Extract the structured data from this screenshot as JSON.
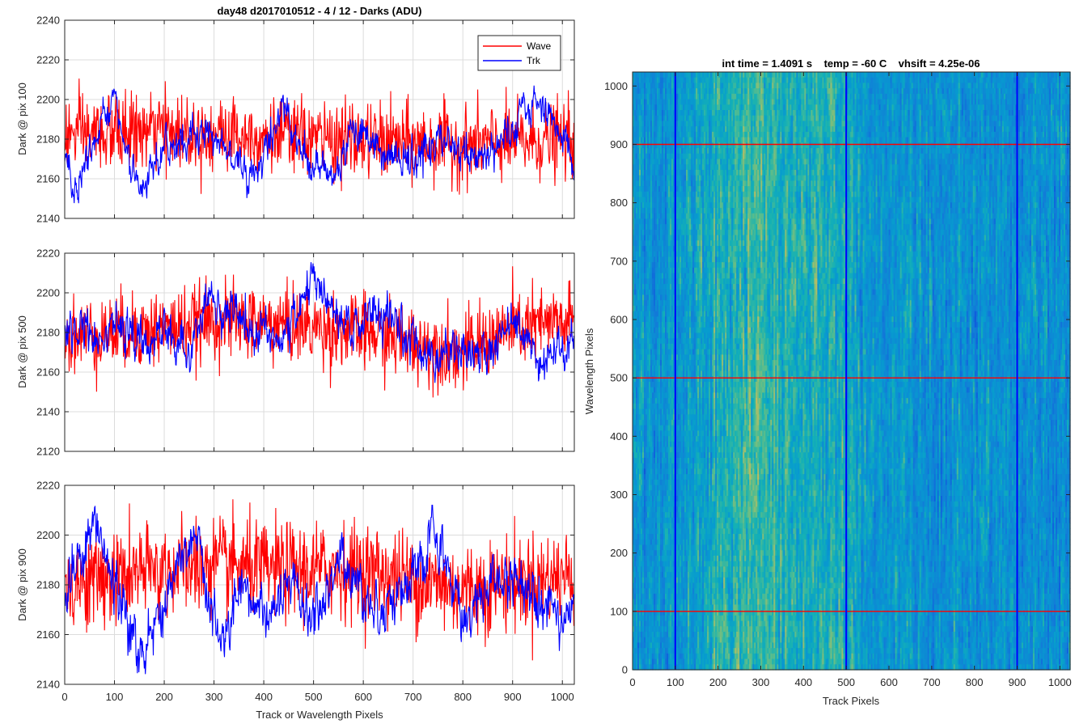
{
  "figure_title": "day48 d2017010512 - 4 / 12 - Darks (ADU)",
  "colors": {
    "wave": "#ff0000",
    "trk": "#0000ff",
    "grid": "#dcdcdc",
    "axis": "#262626"
  },
  "chart_data": [
    {
      "type": "line",
      "title": "day48 d2017010512 - 4 / 12 - Darks (ADU)",
      "ylabel": "Dark @ pix 100",
      "xlabel": "",
      "xlim": [
        0,
        1024
      ],
      "ylim": [
        2140,
        2240
      ],
      "xticks": [
        0,
        100,
        200,
        300,
        400,
        500,
        600,
        700,
        800,
        900,
        1000
      ],
      "yticks": [
        2140,
        2160,
        2180,
        2200,
        2220,
        2240
      ],
      "show_x_tick_labels": false,
      "grid": true,
      "legend": {
        "placement": "top-right",
        "entries": [
          "Wave",
          "Trk"
        ]
      },
      "series": [
        {
          "name": "Wave",
          "color": "#ff0000",
          "mean": 2181,
          "noise": 9.5,
          "min": 2142,
          "max": 2221,
          "trend": [
            [
              0,
              2182
            ],
            [
              200,
              2184
            ],
            [
              400,
              2182
            ],
            [
              600,
              2179
            ],
            [
              800,
              2177
            ],
            [
              1024,
              2180
            ]
          ]
        },
        {
          "name": "Trk",
          "color": "#0000ff",
          "mean": 2178,
          "noise": 3.5,
          "min": 2145,
          "max": 2207,
          "trend": [
            [
              0,
              2170
            ],
            [
              20,
              2155
            ],
            [
              90,
              2200
            ],
            [
              100,
              2196
            ],
            [
              150,
              2150
            ],
            [
              200,
              2175
            ],
            [
              280,
              2185
            ],
            [
              330,
              2175
            ],
            [
              380,
              2160
            ],
            [
              440,
              2198
            ],
            [
              480,
              2172
            ],
            [
              540,
              2160
            ],
            [
              580,
              2188
            ],
            [
              640,
              2172
            ],
            [
              700,
              2168
            ],
            [
              760,
              2180
            ],
            [
              820,
              2170
            ],
            [
              880,
              2178
            ],
            [
              950,
              2200
            ],
            [
              990,
              2188
            ],
            [
              1024,
              2166
            ]
          ]
        }
      ]
    },
    {
      "type": "line",
      "title": "",
      "ylabel": "Dark @ pix 500",
      "xlabel": "",
      "xlim": [
        0,
        1024
      ],
      "ylim": [
        2120,
        2220
      ],
      "xticks": [
        0,
        100,
        200,
        300,
        400,
        500,
        600,
        700,
        800,
        900,
        1000
      ],
      "yticks": [
        2120,
        2140,
        2160,
        2180,
        2200,
        2220
      ],
      "show_x_tick_labels": false,
      "grid": true,
      "series": [
        {
          "name": "Wave",
          "color": "#ff0000",
          "mean": 2181,
          "noise": 9.5,
          "min": 2133,
          "max": 2215,
          "trend": [
            [
              0,
              2178
            ],
            [
              200,
              2182
            ],
            [
              300,
              2186
            ],
            [
              400,
              2185
            ],
            [
              600,
              2180
            ],
            [
              700,
              2175
            ],
            [
              800,
              2170
            ],
            [
              900,
              2182
            ],
            [
              1024,
              2185
            ]
          ]
        },
        {
          "name": "Trk",
          "color": "#0000ff",
          "mean": 2180,
          "noise": 4.0,
          "min": 2145,
          "max": 2216,
          "trend": [
            [
              0,
              2182
            ],
            [
              60,
              2180
            ],
            [
              100,
              2186
            ],
            [
              160,
              2172
            ],
            [
              200,
              2182
            ],
            [
              250,
              2168
            ],
            [
              290,
              2196
            ],
            [
              340,
              2188
            ],
            [
              380,
              2182
            ],
            [
              440,
              2176
            ],
            [
              500,
              2208
            ],
            [
              560,
              2180
            ],
            [
              620,
              2190
            ],
            [
              700,
              2176
            ],
            [
              750,
              2168
            ],
            [
              800,
              2172
            ],
            [
              850,
              2168
            ],
            [
              900,
              2190
            ],
            [
              950,
              2168
            ],
            [
              1000,
              2168
            ],
            [
              1024,
              2180
            ]
          ]
        }
      ]
    },
    {
      "type": "line",
      "title": "",
      "ylabel": "Dark @ pix 900",
      "xlabel": "Track or Wavelength Pixels",
      "xlim": [
        0,
        1024
      ],
      "ylim": [
        2140,
        2220
      ],
      "xticks": [
        0,
        100,
        200,
        300,
        400,
        500,
        600,
        700,
        800,
        900,
        1000
      ],
      "yticks": [
        2140,
        2160,
        2180,
        2200,
        2220
      ],
      "show_x_tick_labels": true,
      "grid": true,
      "series": [
        {
          "name": "Wave",
          "color": "#ff0000",
          "mean": 2183,
          "noise": 9.5,
          "min": 2143,
          "max": 2215,
          "trend": [
            [
              0,
              2180
            ],
            [
              200,
              2186
            ],
            [
              300,
              2188
            ],
            [
              400,
              2186
            ],
            [
              600,
              2186
            ],
            [
              800,
              2178
            ],
            [
              1024,
              2184
            ]
          ]
        },
        {
          "name": "Trk",
          "color": "#0000ff",
          "mean": 2180,
          "noise": 4.0,
          "min": 2143,
          "max": 2212,
          "trend": [
            [
              0,
              2175
            ],
            [
              60,
              2205
            ],
            [
              90,
              2185
            ],
            [
              150,
              2152
            ],
            [
              190,
              2168
            ],
            [
              240,
              2192
            ],
            [
              270,
              2196
            ],
            [
              310,
              2155
            ],
            [
              360,
              2175
            ],
            [
              420,
              2168
            ],
            [
              460,
              2180
            ],
            [
              500,
              2165
            ],
            [
              560,
              2192
            ],
            [
              620,
              2170
            ],
            [
              700,
              2180
            ],
            [
              740,
              2200
            ],
            [
              780,
              2180
            ],
            [
              800,
              2166
            ],
            [
              850,
              2180
            ],
            [
              900,
              2182
            ],
            [
              950,
              2178
            ],
            [
              1000,
              2168
            ],
            [
              1024,
              2168
            ]
          ]
        }
      ]
    },
    {
      "type": "heatmap",
      "title": "int time = 1.4091 s    temp = -60 C    vhsift = 4.25e-06",
      "xlabel": "Track Pixels",
      "ylabel": "Wavelength Pixels",
      "xlim": [
        0,
        1024
      ],
      "ylim": [
        0,
        1024
      ],
      "xticks": [
        0,
        100,
        200,
        300,
        400,
        500,
        600,
        700,
        800,
        900,
        1000
      ],
      "yticks": [
        0,
        100,
        200,
        300,
        400,
        500,
        600,
        700,
        800,
        900,
        1000
      ],
      "colormap": "parula",
      "markers_horizontal_red": [
        100,
        500,
        900
      ],
      "markers_vertical_blue": [
        100,
        500,
        900
      ],
      "column_brightness": [
        [
          0,
          0.4
        ],
        [
          100,
          0.42
        ],
        [
          200,
          0.52
        ],
        [
          260,
          0.58
        ],
        [
          300,
          0.6
        ],
        [
          350,
          0.56
        ],
        [
          400,
          0.52
        ],
        [
          450,
          0.56
        ],
        [
          500,
          0.5
        ],
        [
          550,
          0.42
        ],
        [
          600,
          0.4
        ],
        [
          650,
          0.44
        ],
        [
          700,
          0.38
        ],
        [
          750,
          0.4
        ],
        [
          800,
          0.38
        ],
        [
          850,
          0.4
        ],
        [
          900,
          0.38
        ],
        [
          950,
          0.4
        ],
        [
          1024,
          0.38
        ]
      ]
    }
  ]
}
